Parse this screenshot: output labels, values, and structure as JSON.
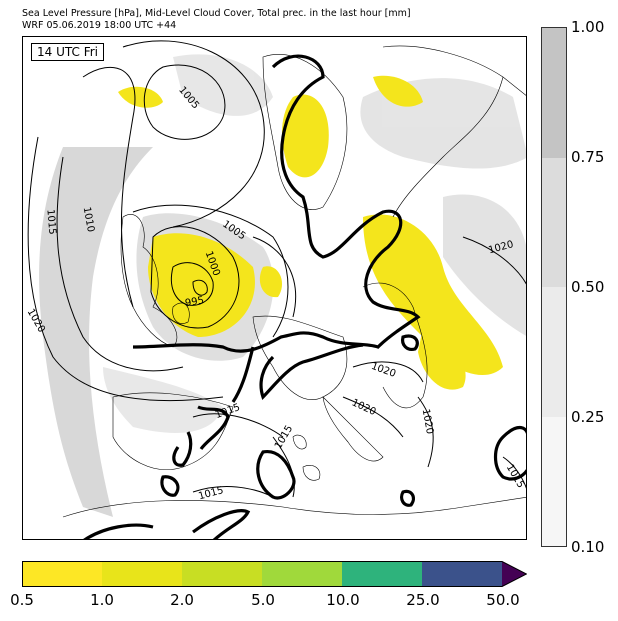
{
  "header": {
    "line1": "Sea Level Pressure [hPa], Mid-Level Cloud Cover, Total prec. in the last hour [mm]",
    "line2": "WRF 05.06.2019 18:00 UTC +44"
  },
  "map": {
    "valid_label": "14 UTC Fri",
    "isobar_labels": [
      "1005",
      "1015",
      "1010",
      "1005",
      "1000",
      "995",
      "1020",
      "1020",
      "1020",
      "1020",
      "1015",
      "1015",
      "1015",
      "1020",
      "1015"
    ]
  },
  "cloud_colorbar": {
    "ticks": [
      "1.00",
      "0.75",
      "0.50",
      "0.25",
      "0.10"
    ],
    "colors": [
      "#c4c4c4",
      "#dcdcdc",
      "#ebebeb",
      "#f6f6f6"
    ]
  },
  "precip_colorbar": {
    "ticks": [
      "0.5",
      "1.0",
      "2.0",
      "5.0",
      "10.0",
      "25.0",
      "50.0"
    ],
    "colors": [
      "#fde725",
      "#e8e41a",
      "#c8de23",
      "#a0d93b",
      "#2eb37c",
      "#3b528b",
      "#440154"
    ]
  },
  "colors": {
    "land_line": "#000000",
    "isobar": "#000000",
    "cloud": "#cfcfcf",
    "precip": "#f4e51c"
  }
}
